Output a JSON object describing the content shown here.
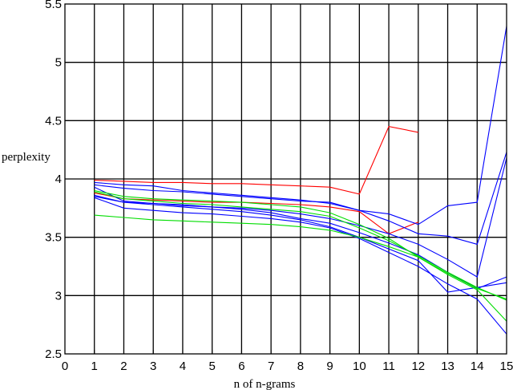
{
  "chart_data": {
    "type": "line",
    "title": "",
    "xlabel": "n of n-grams",
    "ylabel": "perplexity",
    "xlim": [
      0,
      15
    ],
    "ylim": [
      2.5,
      5.5
    ],
    "grid": true,
    "legend": "none",
    "x_ticks": [
      0,
      1,
      2,
      3,
      4,
      5,
      6,
      7,
      8,
      9,
      10,
      11,
      12,
      13,
      14,
      15
    ],
    "y_ticks": [
      2.5,
      3,
      3.5,
      4,
      4.5,
      5,
      5.5
    ],
    "x_tick_labels": [
      "0",
      "1",
      "2",
      "3",
      "4",
      "5",
      "6",
      "7",
      "8",
      "9",
      "10",
      "11",
      "12",
      "13",
      "14",
      "15"
    ],
    "y_tick_labels": [
      "2.5",
      "3",
      "3.5",
      "4",
      "4.5",
      "5",
      "5.5"
    ],
    "colors": {
      "red": "#ff0000",
      "blue": "#0000ff",
      "green": "#00dd00"
    },
    "series": [
      {
        "name": "red-1",
        "color": "red",
        "x": [
          1,
          2,
          3,
          4,
          5,
          6,
          7,
          8,
          9,
          10,
          11,
          12
        ],
        "values": [
          3.99,
          3.98,
          3.97,
          3.97,
          3.96,
          3.96,
          3.95,
          3.94,
          3.93,
          3.87,
          4.45,
          4.4
        ]
      },
      {
        "name": "red-2",
        "color": "red",
        "x": [
          1,
          2,
          3,
          4,
          5,
          6,
          7,
          8,
          9,
          10,
          11,
          12
        ],
        "values": [
          3.88,
          3.83,
          3.82,
          3.81,
          3.8,
          3.8,
          3.79,
          3.78,
          3.76,
          3.72,
          3.53,
          3.63
        ]
      },
      {
        "name": "blue-1",
        "color": "blue",
        "x": [
          1,
          2,
          3,
          4,
          5,
          6,
          7,
          8,
          9,
          10,
          11,
          12,
          13,
          14,
          15
        ],
        "values": [
          3.97,
          3.95,
          3.94,
          3.9,
          3.88,
          3.86,
          3.84,
          3.82,
          3.79,
          3.73,
          3.7,
          3.61,
          3.77,
          3.8,
          5.31
        ]
      },
      {
        "name": "blue-2",
        "color": "blue",
        "x": [
          1,
          2,
          3,
          4,
          5,
          6,
          7,
          8,
          9,
          10,
          11,
          12,
          13,
          14,
          15
        ],
        "values": [
          3.95,
          3.92,
          3.9,
          3.89,
          3.87,
          3.85,
          3.83,
          3.81,
          3.8,
          3.73,
          3.64,
          3.53,
          3.51,
          3.44,
          4.23
        ]
      },
      {
        "name": "blue-3",
        "color": "blue",
        "x": [
          1,
          2,
          3,
          4,
          5,
          6,
          7,
          8,
          9,
          10,
          11,
          12,
          13,
          14,
          15
        ],
        "values": [
          3.93,
          3.81,
          3.79,
          3.77,
          3.76,
          3.75,
          3.73,
          3.7,
          3.66,
          3.6,
          3.53,
          3.44,
          3.31,
          3.16,
          4.18
        ]
      },
      {
        "name": "blue-4",
        "color": "blue",
        "x": [
          1,
          2,
          3,
          4,
          5,
          6,
          7,
          8,
          9,
          10,
          11,
          12,
          13,
          14,
          15
        ],
        "values": [
          3.86,
          3.8,
          3.79,
          3.78,
          3.76,
          3.74,
          3.71,
          3.66,
          3.62,
          3.54,
          3.45,
          3.35,
          3.2,
          3.06,
          3.16
        ]
      },
      {
        "name": "blue-5",
        "color": "blue",
        "x": [
          1,
          2,
          3,
          4,
          5,
          6,
          7,
          8,
          9,
          10,
          11,
          12,
          13,
          14,
          15
        ],
        "values": [
          3.85,
          3.8,
          3.78,
          3.76,
          3.74,
          3.72,
          3.69,
          3.65,
          3.59,
          3.5,
          3.4,
          3.3,
          3.03,
          3.07,
          3.11
        ]
      },
      {
        "name": "blue-6",
        "color": "blue",
        "x": [
          1,
          2,
          3,
          4,
          5,
          6,
          7,
          8,
          9,
          10,
          11,
          12,
          13,
          14,
          15
        ],
        "values": [
          3.84,
          3.75,
          3.73,
          3.71,
          3.7,
          3.68,
          3.66,
          3.63,
          3.58,
          3.49,
          3.37,
          3.25,
          3.1,
          2.97,
          2.67
        ]
      },
      {
        "name": "green-1",
        "color": "green",
        "x": [
          1,
          2,
          3,
          4,
          5,
          6,
          7,
          8,
          9,
          10,
          11,
          12,
          13,
          14,
          15
        ],
        "values": [
          3.9,
          3.85,
          3.83,
          3.82,
          3.81,
          3.8,
          3.78,
          3.76,
          3.71,
          3.61,
          3.49,
          3.33,
          3.18,
          3.05,
          2.78
        ]
      },
      {
        "name": "green-2",
        "color": "green",
        "x": [
          1,
          2,
          3,
          4,
          5,
          6,
          7,
          8,
          9,
          10,
          11,
          12,
          13,
          14,
          15
        ],
        "values": [
          3.89,
          3.83,
          3.81,
          3.79,
          3.78,
          3.76,
          3.74,
          3.72,
          3.68,
          3.58,
          3.47,
          3.34,
          3.2,
          3.07,
          2.96
        ]
      },
      {
        "name": "green-3",
        "color": "green",
        "x": [
          1,
          2,
          3,
          4,
          5,
          6,
          7,
          8,
          9,
          10,
          11,
          12,
          13,
          14,
          15
        ],
        "values": [
          3.69,
          3.67,
          3.65,
          3.64,
          3.63,
          3.62,
          3.61,
          3.59,
          3.56,
          3.5,
          3.42,
          3.33,
          3.19,
          3.06,
          2.97
        ]
      }
    ]
  }
}
